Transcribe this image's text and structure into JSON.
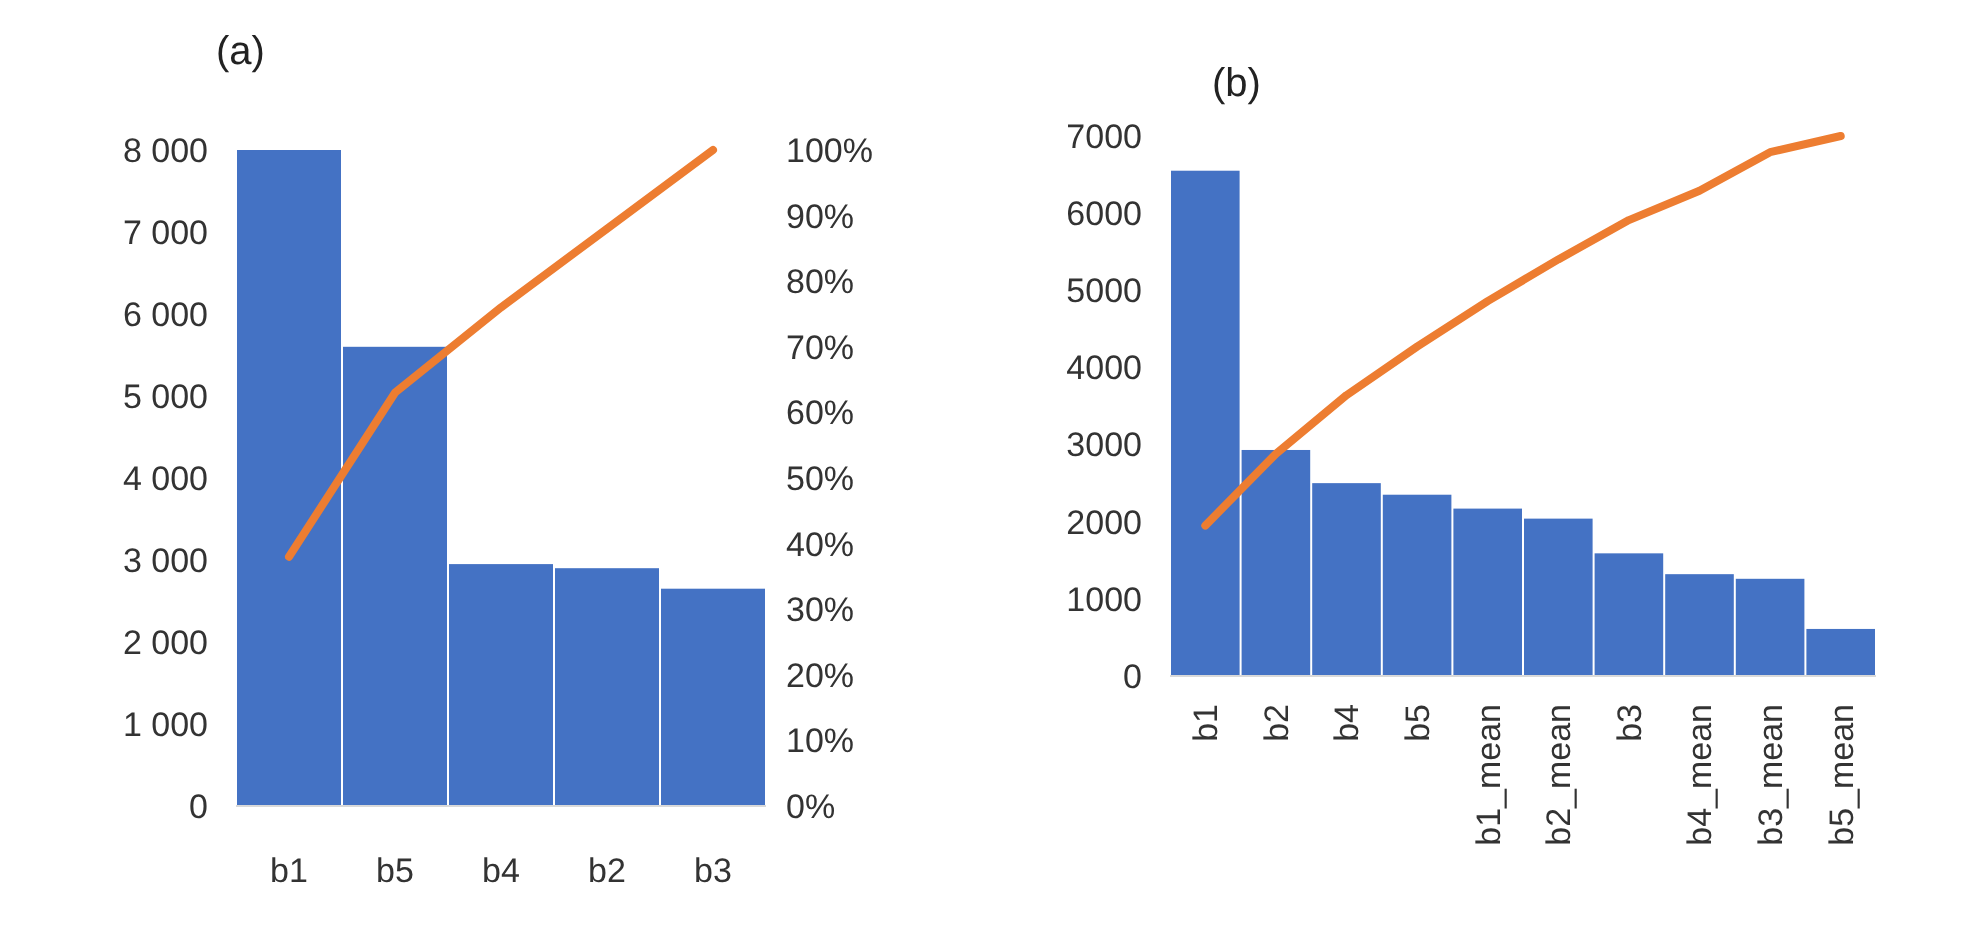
{
  "chart_data": [
    {
      "type": "bar",
      "title": "(a)",
      "categories": [
        "b1",
        "b5",
        "b4",
        "b2",
        "b3"
      ],
      "series": [
        {
          "color": "#4472c4",
          "values": [
            8000,
            5600,
            2950,
            2900,
            2650
          ]
        },
        {
          "type": "line",
          "color": "#ed7d31",
          "axis": "y2",
          "values": [
            38,
            63,
            76,
            88,
            100
          ]
        }
      ],
      "ylim": [
        0,
        8000
      ],
      "yticks": [
        0,
        {
          "value": 1000,
          "label": "1 000"
        },
        {
          "value": 2000,
          "label": "2 000"
        },
        {
          "value": 3000,
          "label": "3 000"
        },
        {
          "value": 4000,
          "label": "4 000"
        },
        {
          "value": 5000,
          "label": "5 000"
        },
        {
          "value": 6000,
          "label": "6 000"
        },
        {
          "value": 7000,
          "label": "7 000"
        },
        {
          "value": 8000,
          "label": "8 000"
        }
      ],
      "y2lim": [
        0,
        100
      ],
      "y2ticks": [
        {
          "value": 0,
          "label": "0%"
        },
        {
          "value": 10,
          "label": "10%"
        },
        {
          "value": 20,
          "label": "20%"
        },
        {
          "value": 30,
          "label": "30%"
        },
        {
          "value": 40,
          "label": "40%"
        },
        {
          "value": 50,
          "label": "50%"
        },
        {
          "value": 60,
          "label": "60%"
        },
        {
          "value": 70,
          "label": "70%"
        },
        {
          "value": 80,
          "label": "80%"
        },
        {
          "value": 90,
          "label": "90%"
        },
        {
          "value": 100,
          "label": "100%"
        }
      ],
      "grid": false
    },
    {
      "type": "bar",
      "title": "(b)",
      "categories": [
        "b1",
        "b2",
        "b4",
        "b5",
        "b1_mean",
        "b2_mean",
        "b3",
        "b4_mean",
        "b3_mean",
        "b5_mean"
      ],
      "series": [
        {
          "color": "#4472c4",
          "values": [
            6550,
            2930,
            2500,
            2350,
            2170,
            2040,
            1590,
            1320,
            1260,
            610
          ]
        },
        {
          "type": "line",
          "color": "#ed7d31",
          "values": [
            1950,
            2880,
            3640,
            4270,
            4860,
            5400,
            5910,
            6290,
            6790,
            7000
          ]
        }
      ],
      "ylim": [
        0,
        7000
      ],
      "yticks": [
        0,
        1000,
        2000,
        3000,
        4000,
        5000,
        6000,
        7000
      ],
      "grid": false
    }
  ]
}
